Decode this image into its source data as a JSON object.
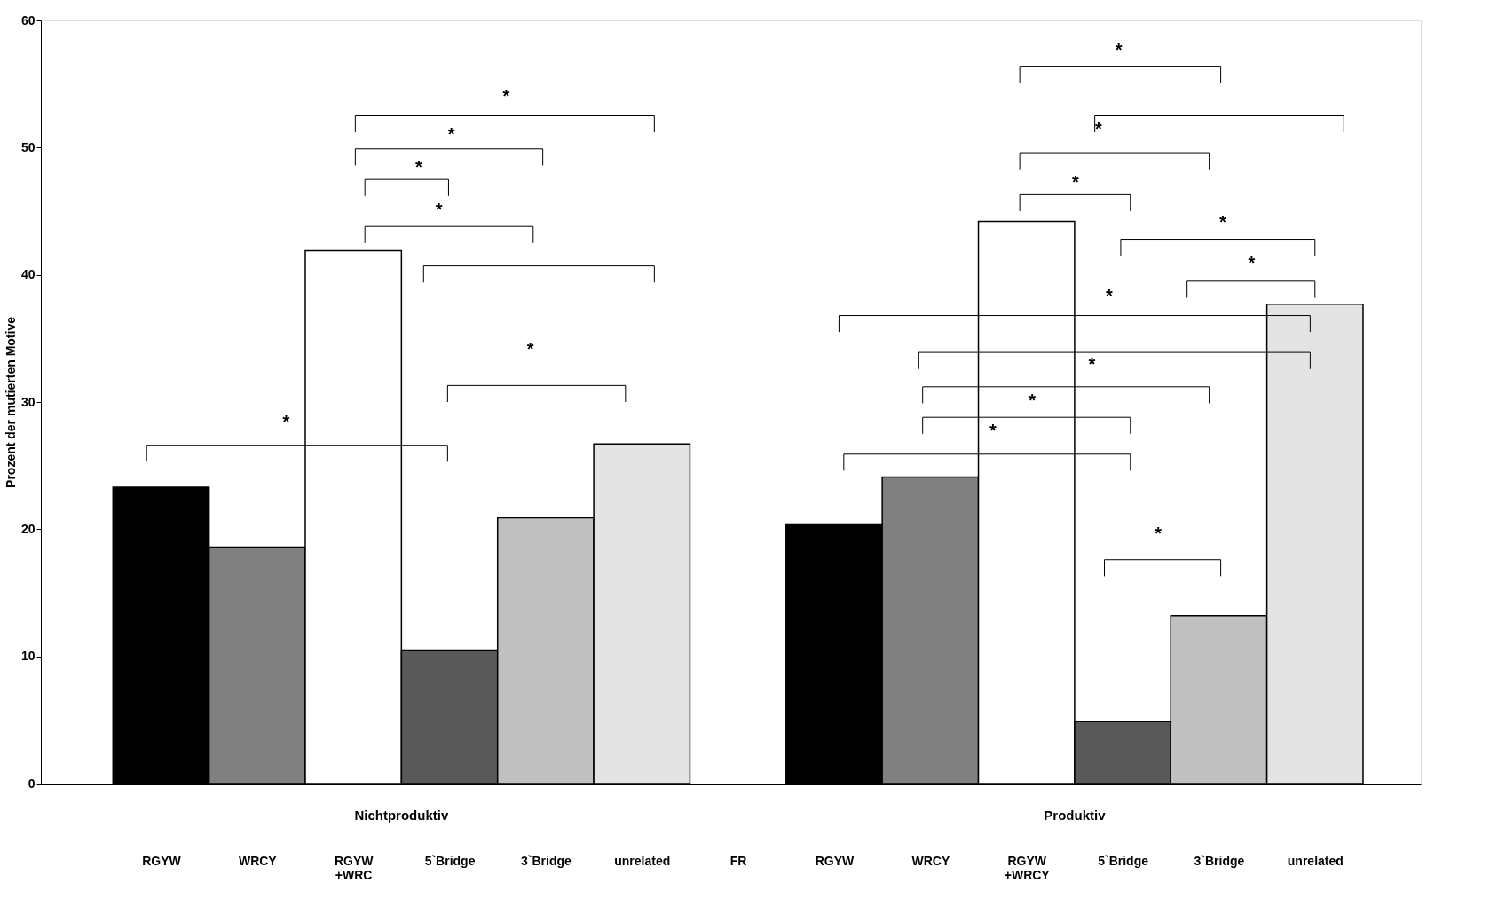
{
  "chart_data": {
    "type": "bar",
    "ylabel": "Prozent der mutierten Motive",
    "categories": [
      "RGYW",
      "WRCY",
      "RGYW +WRC",
      "5`Bridge",
      "3`Bridge",
      "unrelated",
      "FR",
      "RGYW",
      "WRCY",
      "RGYW +WRCY",
      "5`Bridge",
      "3`Bridge",
      "unrelated"
    ],
    "values": [
      23.3,
      18.6,
      41.9,
      10.5,
      20.9,
      26.7,
      null,
      20.4,
      24.1,
      44.2,
      4.9,
      13.2,
      37.7
    ],
    "colors": [
      "#000000",
      "#808080",
      "#ffffff",
      "#595959",
      "#c0c0c0",
      "#e4e4e4",
      null,
      "#000000",
      "#808080",
      "#ffffff",
      "#595959",
      "#c0c0c0",
      "#e4e4e4"
    ],
    "ylim": [
      0,
      60
    ],
    "yticks": [
      0,
      10,
      20,
      30,
      40,
      50,
      60
    ],
    "annotations": [
      "Nichtproduktiv",
      "Produktiv",
      "*",
      "*",
      "*",
      "*",
      "*",
      "*",
      "*",
      "*",
      "*",
      "*",
      "*",
      "*",
      "*",
      "*",
      "*",
      "*"
    ]
  }
}
